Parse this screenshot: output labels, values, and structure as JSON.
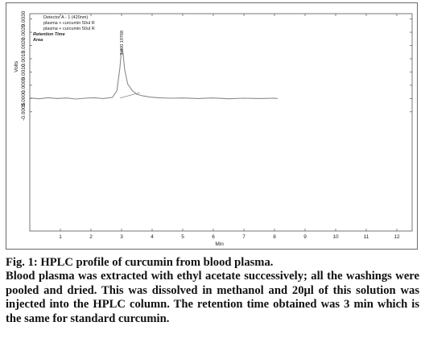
{
  "chart_data": {
    "type": "line",
    "xlabel": "Min",
    "ylabel": "Volts",
    "xlim": [
      0,
      12.5
    ],
    "ylim": [
      -0.005,
      0.0032
    ],
    "xticks": [
      "1",
      "2",
      "3",
      "4",
      "5",
      "6",
      "7",
      "8",
      "9",
      "10",
      "11",
      "12"
    ],
    "xtick_values": [
      1,
      2,
      3,
      4,
      5,
      6,
      7,
      8,
      9,
      10,
      11,
      12
    ],
    "yticks": [
      "-0.0005",
      "0.0000",
      "0.0005",
      "0.0010",
      "0.0015",
      "0.0020",
      "0.0025",
      "0.0030"
    ],
    "ytick_values": [
      -0.0005,
      0.0,
      0.0005,
      0.001,
      0.0015,
      0.002,
      0.0025,
      0.003
    ],
    "legend": {
      "detector": "Detector A - 1 (420nm)",
      "entries": [
        "plasma + curcumin 50ul R",
        "plasma + curcumin 50ul R"
      ],
      "retention_label": "Retention Time",
      "area_label": "Area"
    },
    "peak_label": "3.000 19768",
    "peak_label_x": 3.0,
    "series": [
      {
        "x": [
          0.0,
          0.3,
          0.6,
          0.9,
          1.2,
          1.5,
          1.8,
          2.1,
          2.4,
          2.7,
          2.85,
          2.95,
          3.0,
          3.05,
          3.1,
          3.2,
          3.35,
          3.5,
          3.7,
          3.9,
          4.2,
          4.6,
          5.0,
          5.5,
          6.0,
          6.5,
          7.0,
          7.5,
          8.0,
          8.1
        ],
        "y": [
          2e-05,
          -1e-05,
          3e-05,
          0.0,
          2e-05,
          -2e-05,
          1e-05,
          3e-05,
          0.0,
          4e-05,
          0.0003,
          0.0012,
          0.00188,
          0.0017,
          0.0011,
          0.00055,
          0.0003,
          0.00016,
          0.0001,
          6e-05,
          3e-05,
          1e-05,
          2e-05,
          0.0,
          2e-05,
          -1e-05,
          1e-05,
          0.0,
          1e-05,
          0.0
        ]
      }
    ],
    "baseline_segment": {
      "x": [
        2.95,
        3.6
      ],
      "y": [
        2e-05,
        0.00022
      ]
    }
  },
  "caption": {
    "title": "Fig. 1: HPLC profile of curcumin from blood plasma.",
    "body": "Blood plasma was extracted with ethyl acetate successively; all the washings were pooled and dried. This was dissolved in methanol and 20μl of this solution was injected into the HPLC column. The retention time obtained was 3 min which is the same for standard curcumin."
  }
}
